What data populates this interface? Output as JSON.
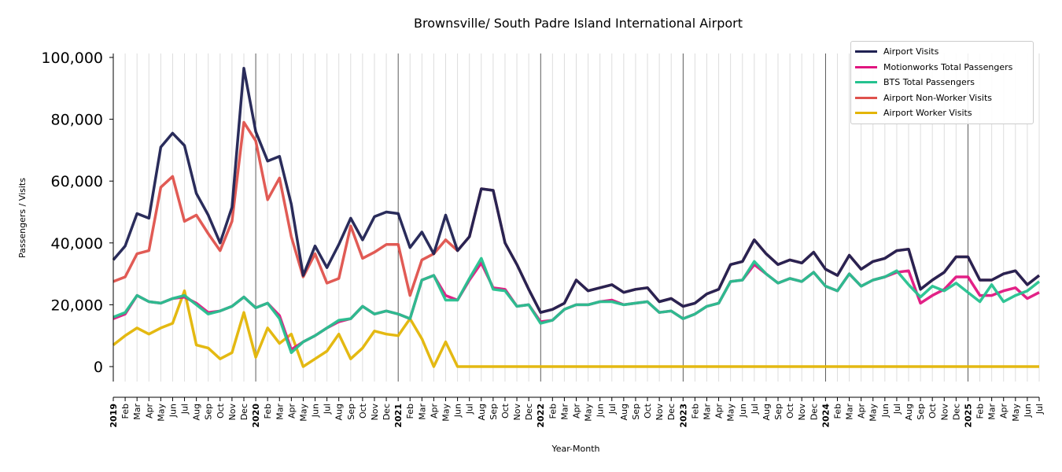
{
  "chart_data": {
    "type": "line",
    "title": "Brownsville/ South Padre Island International Airport",
    "xlabel": "Year-Month",
    "ylabel": "Passengers / Visits",
    "ylim": [
      -5000,
      101000
    ],
    "yticks": [
      0,
      20000,
      40000,
      60000,
      80000,
      100000
    ],
    "ytick_labels": [
      "0",
      "20,000",
      "40,000",
      "60,000",
      "80,000",
      "100,000"
    ],
    "grid": "vertical monthly, year boundaries darker",
    "legend_position": "top-right",
    "start": "2019-01",
    "month_labels": [
      "Feb",
      "Mar",
      "Apr",
      "May",
      "Jun",
      "Jul",
      "Aug",
      "Sep",
      "Oct",
      "Nov",
      "Dec"
    ],
    "year_labels": [
      "2019",
      "2020",
      "2021",
      "2022",
      "2023",
      "2024",
      "2025"
    ],
    "series": [
      {
        "name": "Airport Visits",
        "color": "#1f2152",
        "values": [
          34500,
          39000,
          49500,
          48000,
          71000,
          75500,
          71500,
          56000,
          49000,
          40000,
          51500,
          96500,
          76000,
          66500,
          68000,
          52500,
          29500,
          39000,
          32000,
          39500,
          48000,
          41000,
          48500,
          50000,
          49500,
          38500,
          43500,
          36500,
          49000,
          37500,
          42000,
          57500,
          57000,
          40000,
          33000,
          25000,
          17500,
          18500,
          20500,
          28000,
          24500,
          25500,
          26500,
          24000,
          25000,
          25500,
          21000,
          22000,
          19500,
          20500,
          23500,
          25000,
          33000,
          34000,
          41000,
          36500,
          33000,
          34500,
          33500,
          37000,
          31500,
          29500,
          36000,
          31500,
          34000,
          35000,
          37500,
          38000,
          25000,
          28000,
          30500,
          35500,
          35500,
          28000,
          28000,
          30000,
          31000,
          26500,
          29500
        ]
      },
      {
        "name": "Motionworks Total Passengers",
        "color": "#e0157f",
        "values": [
          15500,
          17000,
          23000,
          21000,
          20500,
          22000,
          22500,
          20500,
          17500,
          18000,
          19500,
          22500,
          19000,
          20500,
          16500,
          5500,
          8000,
          10000,
          12500,
          14500,
          15500,
          19500,
          17000,
          18000,
          17000,
          15500,
          28000,
          29500,
          23000,
          21500,
          28000,
          33500,
          25500,
          25000,
          19500,
          20000,
          14500,
          15000,
          18500,
          20000,
          20000,
          21000,
          21500,
          20000,
          20500,
          21000,
          17500,
          18000,
          15500,
          17000,
          19500,
          20500,
          27500,
          28000,
          33000,
          30000,
          27000,
          28500,
          27500,
          30500,
          26000,
          24500,
          30000,
          26000,
          28000,
          29000,
          30500,
          31000,
          20500,
          23000,
          25000,
          29000,
          29000,
          23000,
          23000,
          24500,
          25500,
          22000,
          24000
        ]
      },
      {
        "name": "BTS Total Passengers",
        "color": "#25c28f",
        "values": [
          16000,
          17500,
          23000,
          21000,
          20500,
          22000,
          23000,
          20000,
          17000,
          18000,
          19500,
          22500,
          19000,
          20500,
          15500,
          4500,
          8000,
          10000,
          12500,
          15000,
          15500,
          19500,
          17000,
          18000,
          17000,
          15500,
          28000,
          29500,
          21500,
          21500,
          28500,
          35000,
          25000,
          24500,
          19500,
          20000,
          14000,
          15000,
          18500,
          20000,
          20000,
          21000,
          21000,
          20000,
          20500,
          21000,
          17500,
          18000,
          15500,
          17000,
          19500,
          20500,
          27500,
          28000,
          34000,
          30000,
          27000,
          28500,
          27500,
          30500,
          26000,
          24500,
          30000,
          26000,
          28000,
          29000,
          31000,
          26500,
          22500,
          26000,
          24500,
          27000,
          24000,
          21000,
          26500,
          21000,
          23000,
          24500,
          27500
        ]
      },
      {
        "name": "Airport Non-Worker Visits",
        "color": "#df524c",
        "values": [
          27500,
          29000,
          36500,
          37500,
          58000,
          61500,
          47000,
          49000,
          43000,
          37500,
          47000,
          79000,
          73000,
          54000,
          61000,
          42000,
          29000,
          36500,
          27000,
          28500,
          45500,
          35000,
          37000,
          39500,
          39500,
          23000,
          34500,
          36500,
          41000,
          37500,
          42000,
          57500,
          57000,
          40000,
          33000,
          25000,
          17500,
          18500,
          20500,
          28000,
          24500,
          25500,
          26500,
          24000,
          25000,
          25500,
          21000,
          22000,
          19500,
          20500,
          23500,
          25000,
          33000,
          34000,
          41000,
          36500,
          33000,
          34500,
          33500,
          37000,
          31500,
          29500,
          36000,
          31500,
          34000,
          35000,
          37500,
          38000,
          25000,
          28000,
          30500,
          35500,
          35500,
          28000,
          28000,
          30000,
          31000,
          26500,
          29500
        ]
      },
      {
        "name": "Airport Worker Visits",
        "color": "#e3b505",
        "values": [
          7000,
          10000,
          12500,
          10500,
          12500,
          14000,
          24500,
          7000,
          6000,
          2500,
          4500,
          17500,
          3000,
          12500,
          7500,
          10500,
          0,
          2500,
          5000,
          10500,
          2500,
          6000,
          11500,
          10500,
          10000,
          15500,
          9000,
          0,
          8000,
          0,
          0,
          0,
          0,
          0,
          0,
          0,
          0,
          0,
          0,
          0,
          0,
          0,
          0,
          0,
          0,
          0,
          0,
          0,
          0,
          0,
          0,
          0,
          0,
          0,
          0,
          0,
          0,
          0,
          0,
          0,
          0,
          0,
          0,
          0,
          0,
          0,
          0,
          0,
          0,
          0,
          0,
          0,
          0,
          0,
          0,
          0,
          0,
          0,
          0
        ]
      }
    ]
  }
}
